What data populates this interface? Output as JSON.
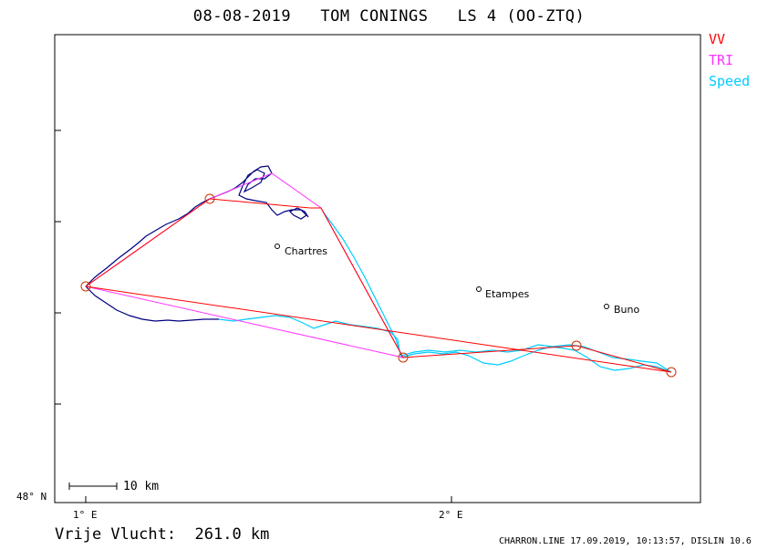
{
  "title": "08-08-2019   TOM CONINGS   LS 4 (OO-ZTQ)",
  "legend": [
    {
      "label": "VV",
      "color": "#ff0000"
    },
    {
      "label": "TRI",
      "color": "#ff33ff"
    },
    {
      "label": "Speed",
      "color": "#00ccff"
    }
  ],
  "axes": {
    "lat_label": "48° N",
    "lon_labels": [
      "1° E",
      "2° E"
    ]
  },
  "places": [
    {
      "name": "Chartres"
    },
    {
      "name": "Etampes"
    },
    {
      "name": "Buno"
    }
  ],
  "scale_label": "10 km",
  "footer": {
    "distance": "Vrije Vlucht:  261.0 km",
    "info": "CHARRON.LINE 17.09.2019, 10:13:57, DISLIN 10.6"
  },
  "colors": {
    "vv": "#ff0000",
    "tri": "#ff33ff",
    "speed": "#00ccff",
    "track": "#000080"
  }
}
